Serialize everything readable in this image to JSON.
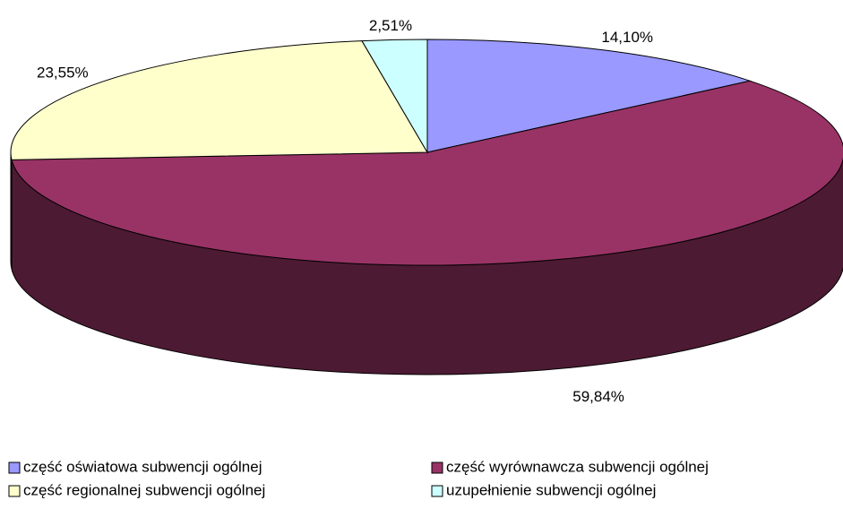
{
  "chart_data": {
    "type": "pie",
    "categories": [
      "część oświatowa subwencji ogólnej",
      "część wyrównawcza subwencji ogólnej",
      "część regionalnej subwencji ogólnej",
      "uzupełnienie subwencji ogólnej"
    ],
    "values": [
      14.1,
      59.84,
      23.55,
      2.51
    ],
    "value_labels": [
      "14,10%",
      "59,84%",
      "23,55%",
      "2,51%"
    ],
    "colors": [
      "#9999ff",
      "#993366",
      "#ffffcc",
      "#ccffff"
    ],
    "legend": "bottom"
  }
}
